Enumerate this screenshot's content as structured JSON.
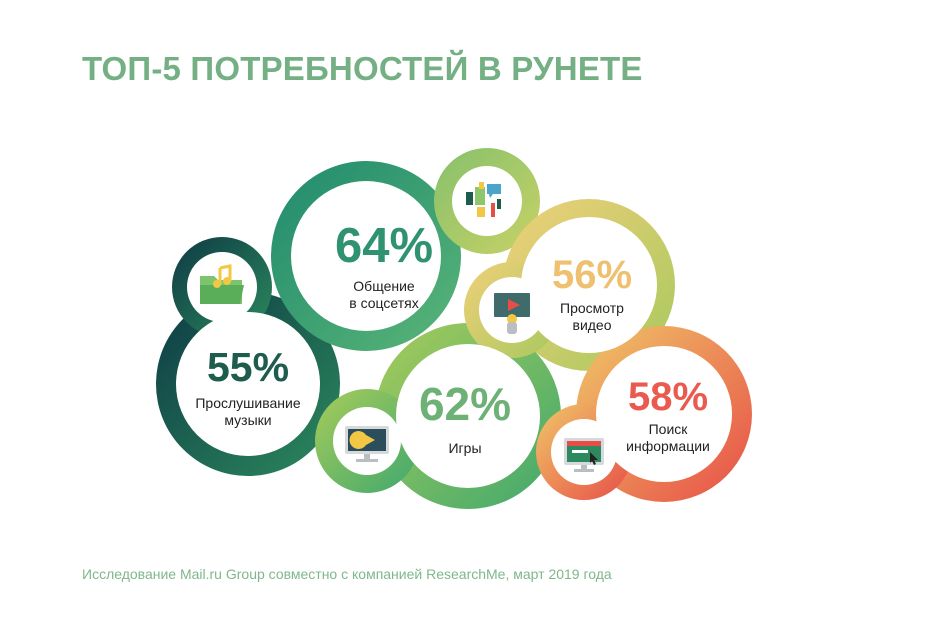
{
  "title": "ТОП-5 ПОТРЕБНОСТЕЙ В РУНЕТЕ",
  "source": "Исследование Mail.ru Group совместно с компанией ResearchMe, март 2019 года",
  "colors": {
    "title": "#74b084",
    "source": "#7fb78d"
  },
  "chart_data": {
    "type": "bubble",
    "title": "ТОП-5 ПОТРЕБНОСТЕЙ В РУНЕТЕ",
    "unit": "%",
    "series": [
      {
        "value": 55,
        "value_label": "55%",
        "label_lines": [
          "Прослушивание",
          "музыки"
        ],
        "color": "#1e5c4e",
        "icon": "music-folder-icon"
      },
      {
        "value": 64,
        "value_label": "64%",
        "label_lines": [
          "Общение",
          "в соцсетях"
        ],
        "color": "#2f9270",
        "icon": "social-network-icon"
      },
      {
        "value": 62,
        "value_label": "62%",
        "label_lines": [
          "Игры"
        ],
        "color": "#6db176",
        "icon": "game-monitor-icon"
      },
      {
        "value": 56,
        "value_label": "56%",
        "label_lines": [
          "Просмотр",
          "видео"
        ],
        "color": "#eec070",
        "icon": "video-player-icon"
      },
      {
        "value": 58,
        "value_label": "58%",
        "label_lines": [
          "Поиск",
          "информации"
        ],
        "color": "#e95b4e",
        "icon": "search-screen-icon"
      }
    ]
  }
}
